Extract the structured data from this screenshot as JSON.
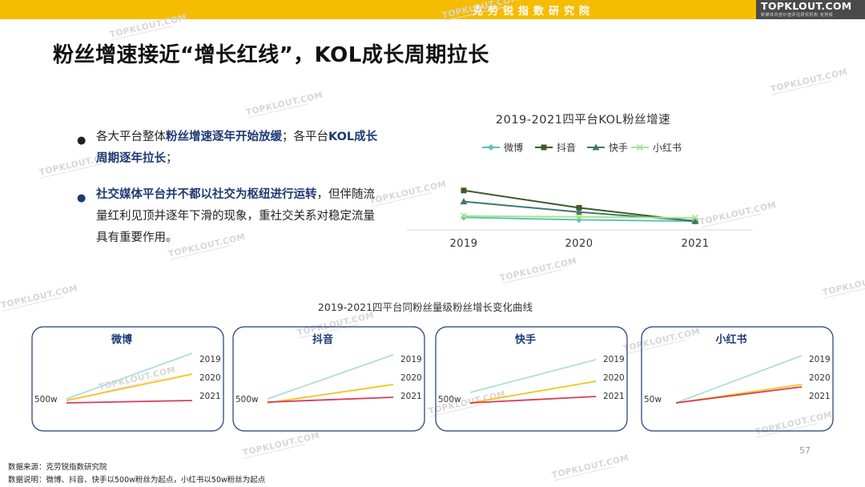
{
  "header": {
    "org": "克劳锐指数研究院",
    "logo": "TOPKLOUT.COM",
    "logo_sub": "新媒体内容价值评估研究机构 克劳锐"
  },
  "watermark": "TOPKLOUT.COM",
  "title": "粉丝增速接近“增长红线”，KOL成长周期拉长",
  "bullets": [
    {
      "pre": "各大平台整体",
      "hl1": "粉丝增速逐年开始放缓",
      "mid": "；各平台",
      "hl2": "KOL成长周期逐年拉长",
      "post": "；"
    },
    {
      "pre": "",
      "hl1": "社交媒体平台并不都以社交为枢纽进行运转",
      "mid": "，但伴随流量红利见顶并逐年下滑的现象，重社交关系对稳定流量具有重要作用。",
      "hl2": "",
      "post": ""
    }
  ],
  "page_number": "57",
  "footnotes": {
    "source": "数据来源：克劳锐指数研究院",
    "note": "数据说明：微博、抖音、快手以500w粉丝为起点，小红书以50w粉丝为起点"
  },
  "chart_data": [
    {
      "type": "line",
      "title": "2019-2021四平台KOL粉丝增速",
      "x": [
        "2019",
        "2020",
        "2021"
      ],
      "xlabel": "",
      "ylabel": "",
      "ylim": [
        0,
        10
      ],
      "grid": false,
      "legend": "top",
      "series": [
        {
          "name": "微博",
          "values": [
            2.6,
            2.1,
            1.8
          ],
          "color": "#5cc4b4",
          "marker": "diamond"
        },
        {
          "name": "抖音",
          "values": [
            8.2,
            4.6,
            1.8
          ],
          "color": "#3c5a2a",
          "marker": "square"
        },
        {
          "name": "快手",
          "values": [
            5.9,
            3.7,
            1.9
          ],
          "color": "#3e7a6a",
          "marker": "triangle"
        },
        {
          "name": "小红书",
          "values": [
            2.9,
            2.7,
            2.5
          ],
          "color": "#a8e48a",
          "marker": "x"
        }
      ]
    },
    {
      "type": "line",
      "title": "2019-2021四平台同粉丝量级粉丝增长变化曲线",
      "panels": [
        {
          "name": "微博",
          "start_label": "500w",
          "x": [
            0,
            1
          ],
          "series": [
            {
              "name": "2019",
              "values": [
                0.5,
                6.2
              ],
              "color": "#aedfd7"
            },
            {
              "name": "2020",
              "values": [
                0.3,
                3.6
              ],
              "color": "#f3c21a"
            },
            {
              "name": "2021",
              "values": [
                0.0,
                0.3
              ],
              "color": "#d63c5a"
            }
          ]
        },
        {
          "name": "抖音",
          "start_label": "500w",
          "x": [
            0,
            1
          ],
          "series": [
            {
              "name": "2019",
              "values": [
                0.5,
                6.0
              ],
              "color": "#aedfd7"
            },
            {
              "name": "2020",
              "values": [
                0.0,
                2.3
              ],
              "color": "#f3c21a"
            },
            {
              "name": "2021",
              "values": [
                0.1,
                0.7
              ],
              "color": "#d63c5a"
            }
          ]
        },
        {
          "name": "快手",
          "start_label": "500w",
          "x": [
            0,
            1
          ],
          "series": [
            {
              "name": "2019",
              "values": [
                1.3,
                5.4
              ],
              "color": "#aedfd7"
            },
            {
              "name": "2020",
              "values": [
                0.0,
                2.7
              ],
              "color": "#f3c21a"
            },
            {
              "name": "2021",
              "values": [
                0.0,
                0.8
              ],
              "color": "#d63c5a"
            }
          ]
        },
        {
          "name": "小红书",
          "start_label": "50w",
          "x": [
            0,
            1
          ],
          "series": [
            {
              "name": "2019",
              "values": [
                0.0,
                5.9
              ],
              "color": "#aedfd7"
            },
            {
              "name": "2020",
              "values": [
                0.0,
                2.3
              ],
              "color": "#f3c21a"
            },
            {
              "name": "2021",
              "values": [
                0.0,
                2.0
              ],
              "color": "#d63c5a"
            }
          ]
        }
      ]
    }
  ]
}
